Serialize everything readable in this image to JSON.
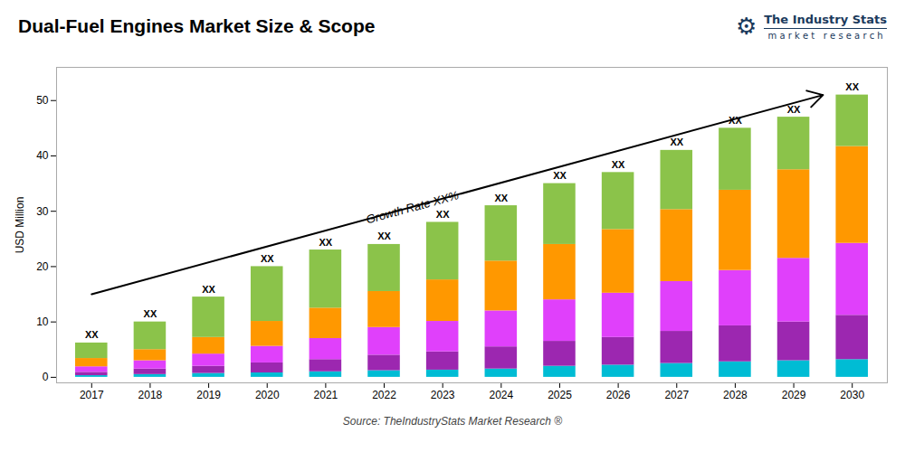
{
  "chart_data": {
    "type": "bar",
    "stacked": true,
    "title": "Dual-Fuel Engines Market Size & Scope",
    "ylabel": "USD Million",
    "caption": "Source: TheIndustryStats Market Research ®",
    "categories": [
      "2017",
      "2018",
      "2019",
      "2020",
      "2021",
      "2022",
      "2023",
      "2024",
      "2025",
      "2026",
      "2027",
      "2028",
      "2029",
      "2030"
    ],
    "series": [
      {
        "color": "#00bcd4",
        "values": [
          0.3,
          0.5,
          0.7,
          0.8,
          1.0,
          1.2,
          1.3,
          1.5,
          2.0,
          2.2,
          2.5,
          2.8,
          3.0,
          3.2
        ]
      },
      {
        "color": "#9c27b0",
        "values": [
          0.6,
          1.0,
          1.3,
          1.8,
          2.2,
          2.8,
          3.3,
          4.0,
          4.5,
          5.0,
          5.8,
          6.5,
          7.0,
          8.0
        ]
      },
      {
        "color": "#e040fb",
        "values": [
          1.0,
          1.5,
          2.2,
          3.0,
          3.8,
          5.0,
          5.5,
          6.5,
          7.5,
          8.0,
          9.0,
          10.0,
          11.5,
          13.0
        ]
      },
      {
        "color": "#ff9800",
        "values": [
          1.5,
          2.0,
          3.0,
          4.5,
          5.5,
          6.5,
          7.5,
          9.0,
          10.0,
          11.5,
          13.0,
          14.5,
          16.0,
          17.5
        ]
      },
      {
        "color": "#8bc34a",
        "values": [
          2.8,
          5.0,
          7.3,
          9.9,
          10.5,
          8.5,
          10.4,
          10.0,
          11.0,
          10.3,
          10.7,
          11.2,
          9.5,
          9.3
        ]
      }
    ],
    "value_labels": [
      "XX",
      "XX",
      "XX",
      "XX",
      "XX",
      "XX",
      "XX",
      "XX",
      "XX",
      "XX",
      "XX",
      "XX",
      "XX",
      "XX"
    ],
    "annotations": [
      {
        "type": "arrow",
        "x1": 0.0,
        "y1": 15,
        "x2": 12.5,
        "y2": 51
      },
      {
        "text": "Growth Rate XX%",
        "x": 5.5,
        "y": 30
      },
      {
        "text": "⚙"
      },
      {
        "text": "The Industry Stats"
      },
      {
        "text": "m a r k e t   r e s e a r c h"
      }
    ],
    "ylim": [
      -1,
      56
    ],
    "yticks": [
      0,
      10,
      20,
      30,
      40,
      50
    ],
    "grid": false
  }
}
